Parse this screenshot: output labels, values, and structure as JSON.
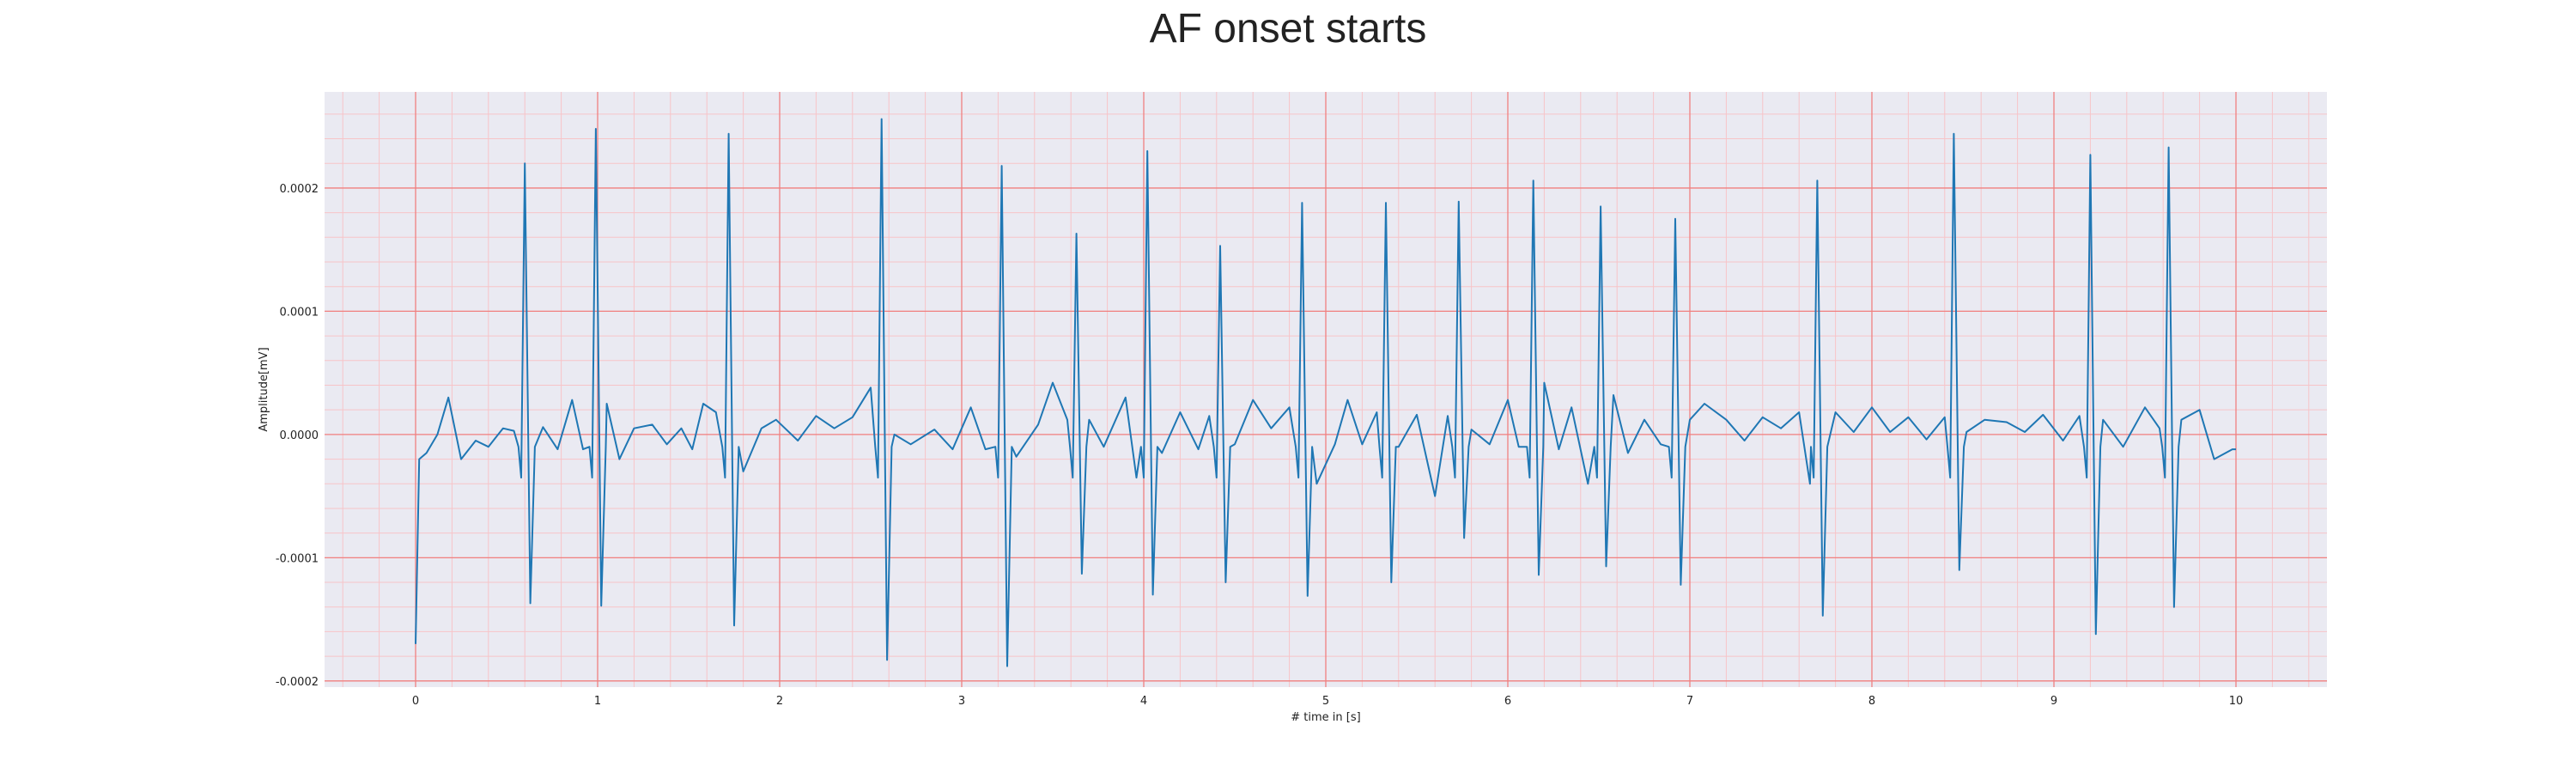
{
  "chart_data": {
    "type": "line",
    "title": "AF onset starts",
    "xlabel": "# time in [s]",
    "ylabel": "Amplitude[mV]",
    "xlim": [
      -0.5,
      10.5
    ],
    "ylim": [
      -0.000205,
      0.000278
    ],
    "x_ticks": [
      0,
      1,
      2,
      3,
      4,
      5,
      6,
      7,
      8,
      9,
      10
    ],
    "y_ticks": [
      -0.0002,
      -0.0001,
      0.0,
      0.0001,
      0.0002
    ],
    "y_tick_labels": [
      "-0.0002",
      "-0.0001",
      "0.0000",
      "0.0001",
      "0.0002"
    ],
    "grid": true,
    "minor_grid": true,
    "colors": {
      "plot_background": "#eaeaf2",
      "major_grid": "#f08080",
      "minor_grid": "#f7c4c8",
      "line": "#1f77b4"
    },
    "series": [
      {
        "name": "",
        "r_peaks": [
          {
            "t": 0.6,
            "peak": 0.00022,
            "trough": -0.000137
          },
          {
            "t": 0.99,
            "peak": 0.000248,
            "trough": -0.000139
          },
          {
            "t": 1.72,
            "peak": 0.000244,
            "trough": -0.000155
          },
          {
            "t": 2.56,
            "peak": 0.000256,
            "trough": -0.000183
          },
          {
            "t": 3.22,
            "peak": 0.000218,
            "trough": -0.000188
          },
          {
            "t": 3.63,
            "peak": 0.000163,
            "trough": -0.000113
          },
          {
            "t": 4.02,
            "peak": 0.00023,
            "trough": -0.00013
          },
          {
            "t": 4.42,
            "peak": 0.000153,
            "trough": -0.00012
          },
          {
            "t": 4.87,
            "peak": 0.000188,
            "trough": -0.000131
          },
          {
            "t": 5.33,
            "peak": 0.000188,
            "trough": -0.00012
          },
          {
            "t": 5.73,
            "peak": 0.000189,
            "trough": -8.4e-05
          },
          {
            "t": 6.14,
            "peak": 0.000206,
            "trough": -0.000114
          },
          {
            "t": 6.51,
            "peak": 0.000185,
            "trough": -0.000107
          },
          {
            "t": 6.92,
            "peak": 0.000175,
            "trough": -0.000122
          },
          {
            "t": 7.7,
            "peak": 0.000206,
            "trough": -0.000147
          },
          {
            "t": 8.45,
            "peak": 0.000244,
            "trough": -0.00011
          },
          {
            "t": 9.2,
            "peak": 0.000227,
            "trough": -0.000162
          },
          {
            "t": 9.63,
            "peak": 0.000233,
            "trough": -0.00014
          }
        ],
        "baseline_points": [
          [
            0.0,
            -0.00017
          ],
          [
            0.02,
            -2e-05
          ],
          [
            0.06,
            -1.5e-05
          ],
          [
            0.12,
            0.0
          ],
          [
            0.18,
            3e-05
          ],
          [
            0.25,
            -2e-05
          ],
          [
            0.33,
            -5e-06
          ],
          [
            0.4,
            -1e-05
          ],
          [
            0.48,
            5e-06
          ],
          [
            0.54,
            3e-06
          ],
          [
            0.7,
            6e-06
          ],
          [
            0.78,
            -1.2e-05
          ],
          [
            0.86,
            2.8e-05
          ],
          [
            0.92,
            -1.2e-05
          ],
          [
            1.05,
            2.5e-05
          ],
          [
            1.12,
            -2e-05
          ],
          [
            1.2,
            5e-06
          ],
          [
            1.3,
            8e-06
          ],
          [
            1.38,
            -8e-06
          ],
          [
            1.46,
            5e-06
          ],
          [
            1.52,
            -1.2e-05
          ],
          [
            1.58,
            2.5e-05
          ],
          [
            1.65,
            1.8e-05
          ],
          [
            1.8,
            -3e-05
          ],
          [
            1.9,
            5e-06
          ],
          [
            1.98,
            1.2e-05
          ],
          [
            2.1,
            -5e-06
          ],
          [
            2.2,
            1.5e-05
          ],
          [
            2.3,
            5e-06
          ],
          [
            2.4,
            1.4e-05
          ],
          [
            2.5,
            3.8e-05
          ],
          [
            2.63,
            0.0
          ],
          [
            2.72,
            -8e-06
          ],
          [
            2.85,
            4e-06
          ],
          [
            2.95,
            -1.2e-05
          ],
          [
            3.05,
            2.2e-05
          ],
          [
            3.13,
            -1.2e-05
          ],
          [
            3.3,
            -1.8e-05
          ],
          [
            3.42,
            8e-06
          ],
          [
            3.5,
            4.2e-05
          ],
          [
            3.58,
            1.2e-05
          ],
          [
            3.7,
            1.2e-05
          ],
          [
            3.78,
            -1e-05
          ],
          [
            3.9,
            3e-05
          ],
          [
            3.96,
            -3.5e-05
          ],
          [
            4.1,
            -1.5e-05
          ],
          [
            4.2,
            1.8e-05
          ],
          [
            4.3,
            -1.2e-05
          ],
          [
            4.36,
            1.5e-05
          ],
          [
            4.5,
            -8e-06
          ],
          [
            4.6,
            2.8e-05
          ],
          [
            4.7,
            5e-06
          ],
          [
            4.8,
            2.2e-05
          ],
          [
            4.95,
            -4e-05
          ],
          [
            5.05,
            -8e-06
          ],
          [
            5.12,
            2.8e-05
          ],
          [
            5.2,
            -8e-06
          ],
          [
            5.28,
            1.8e-05
          ],
          [
            5.4,
            -1e-05
          ],
          [
            5.5,
            1.6e-05
          ],
          [
            5.6,
            -5e-05
          ],
          [
            5.67,
            1.5e-05
          ],
          [
            5.8,
            4e-06
          ],
          [
            5.9,
            -8e-06
          ],
          [
            6.0,
            2.8e-05
          ],
          [
            6.06,
            -1e-05
          ],
          [
            6.2,
            4.2e-05
          ],
          [
            6.28,
            -1.2e-05
          ],
          [
            6.35,
            2.2e-05
          ],
          [
            6.44,
            -4e-05
          ],
          [
            6.58,
            3.2e-05
          ],
          [
            6.66,
            -1.5e-05
          ],
          [
            6.75,
            1.2e-05
          ],
          [
            6.84,
            -8e-06
          ],
          [
            7.0,
            1.2e-05
          ],
          [
            7.08,
            2.5e-05
          ],
          [
            7.2,
            1.2e-05
          ],
          [
            7.3,
            -5e-06
          ],
          [
            7.4,
            1.4e-05
          ],
          [
            7.5,
            5e-06
          ],
          [
            7.6,
            1.8e-05
          ],
          [
            7.66,
            -4e-05
          ],
          [
            7.8,
            1.8e-05
          ],
          [
            7.9,
            2e-06
          ],
          [
            8.0,
            2.2e-05
          ],
          [
            8.1,
            2e-06
          ],
          [
            8.2,
            1.4e-05
          ],
          [
            8.3,
            -4e-06
          ],
          [
            8.4,
            1.4e-05
          ],
          [
            8.52,
            2e-06
          ],
          [
            8.62,
            1.2e-05
          ],
          [
            8.74,
            1e-05
          ],
          [
            8.84,
            2e-06
          ],
          [
            8.94,
            1.6e-05
          ],
          [
            9.05,
            -5e-06
          ],
          [
            9.14,
            1.5e-05
          ],
          [
            9.27,
            1.2e-05
          ],
          [
            9.38,
            -1e-05
          ],
          [
            9.5,
            2.2e-05
          ],
          [
            9.58,
            5e-06
          ],
          [
            9.7,
            1.2e-05
          ],
          [
            9.8,
            2e-05
          ],
          [
            9.88,
            -2e-05
          ],
          [
            9.98,
            -1.2e-05
          ]
        ]
      }
    ]
  }
}
